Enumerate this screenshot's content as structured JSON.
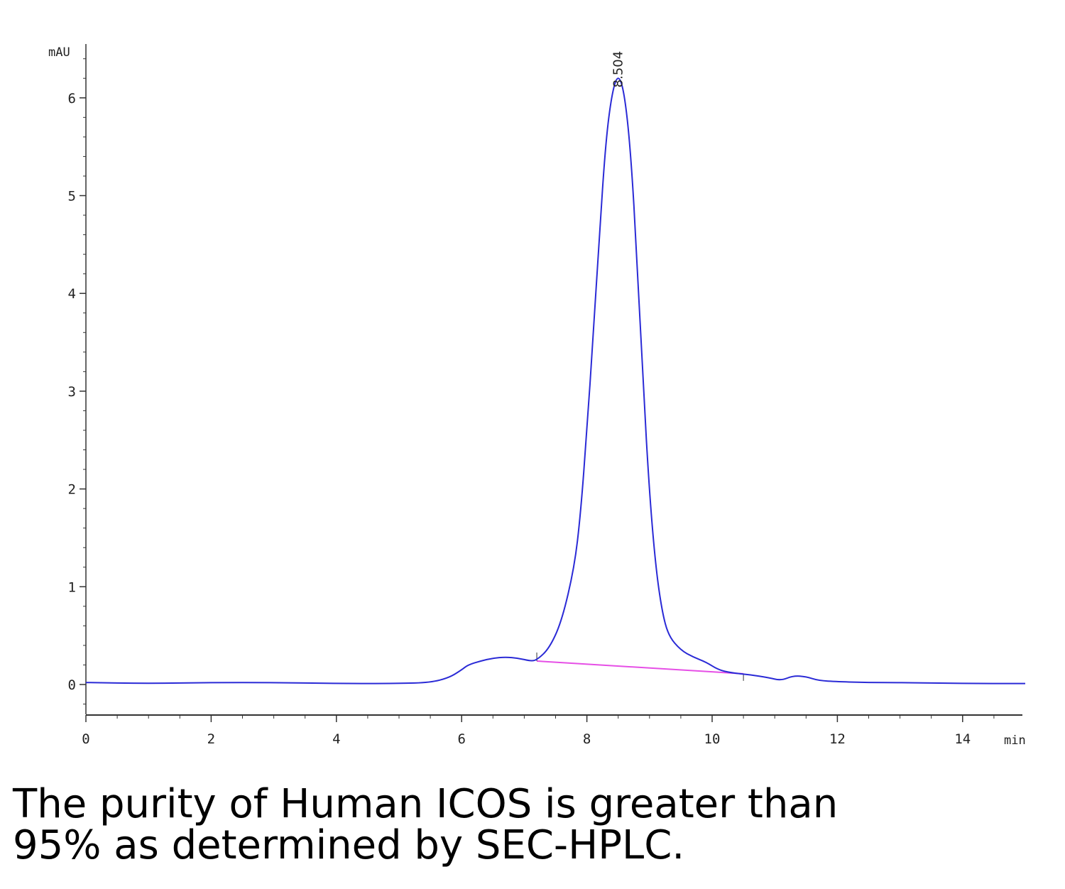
{
  "chart_data": {
    "type": "line",
    "ylabel": "mAU",
    "xlabel": "min",
    "xlim": [
      0,
      15
    ],
    "ylim": [
      -0.3,
      6.6
    ],
    "x_ticks": [
      "0",
      "2",
      "4",
      "6",
      "8",
      "10",
      "12",
      "14"
    ],
    "y_ticks": [
      "0",
      "1",
      "2",
      "3",
      "4",
      "5",
      "6"
    ],
    "peak_label": "8.504",
    "colors": {
      "trace": "#2a2ad6",
      "baseline": "#e64fe6",
      "axis": "#333333"
    },
    "series": [
      {
        "x": [
          0,
          1,
          2,
          3,
          4,
          5,
          5.5,
          5.8,
          6.0,
          6.1,
          6.3,
          6.5,
          6.7,
          6.9,
          7.1,
          7.2,
          7.4,
          7.6,
          7.8,
          7.9,
          8.0,
          8.1,
          8.2,
          8.3,
          8.4,
          8.5,
          8.6,
          8.7,
          8.8,
          8.9,
          9.0,
          9.1,
          9.2,
          9.3,
          9.5,
          9.7,
          9.9,
          10.1,
          10.3,
          10.6,
          10.9,
          11.1,
          11.3,
          11.5,
          11.7,
          12.0,
          12.5,
          13,
          14,
          15
        ],
        "y": [
          0.02,
          0.01,
          0.02,
          0.02,
          0.01,
          0.01,
          0.02,
          0.07,
          0.15,
          0.2,
          0.24,
          0.27,
          0.28,
          0.27,
          0.24,
          0.25,
          0.37,
          0.65,
          1.2,
          1.75,
          2.6,
          3.55,
          4.6,
          5.55,
          6.05,
          6.25,
          6.05,
          5.45,
          4.35,
          3.05,
          1.95,
          1.2,
          0.75,
          0.5,
          0.35,
          0.28,
          0.23,
          0.15,
          0.12,
          0.1,
          0.07,
          0.04,
          0.09,
          0.08,
          0.04,
          0.03,
          0.02,
          0.02,
          0.01,
          0.01
        ]
      }
    ],
    "integration_baseline": {
      "x": [
        7.2,
        10.5
      ],
      "y": [
        0.24,
        0.11
      ]
    }
  },
  "caption": {
    "line1": "The purity of Human ICOS is greater than",
    "line2": "95% as determined by SEC-HPLC."
  }
}
